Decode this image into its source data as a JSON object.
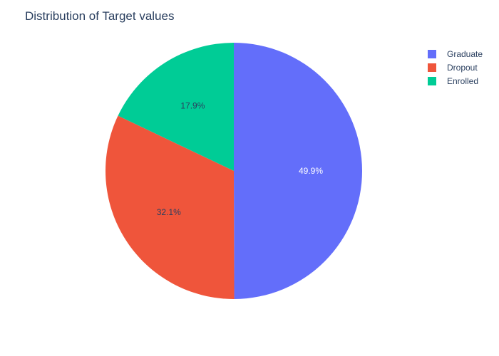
{
  "chart_data": {
    "type": "pie",
    "title": "Distribution of Target values",
    "labels": [
      "Graduate",
      "Dropout",
      "Enrolled"
    ],
    "values": [
      49.9,
      32.1,
      17.9
    ],
    "value_labels": [
      "49.9%",
      "32.1%",
      "17.9%"
    ],
    "colors": [
      "#636efa",
      "#ef553b",
      "#00cc96"
    ],
    "label_text_colors": [
      "#ffffff",
      "#2a3f5f",
      "#2a3f5f"
    ],
    "legend_position": "top-right",
    "direction": "clockwise",
    "rotation_start": "12 o'clock"
  }
}
